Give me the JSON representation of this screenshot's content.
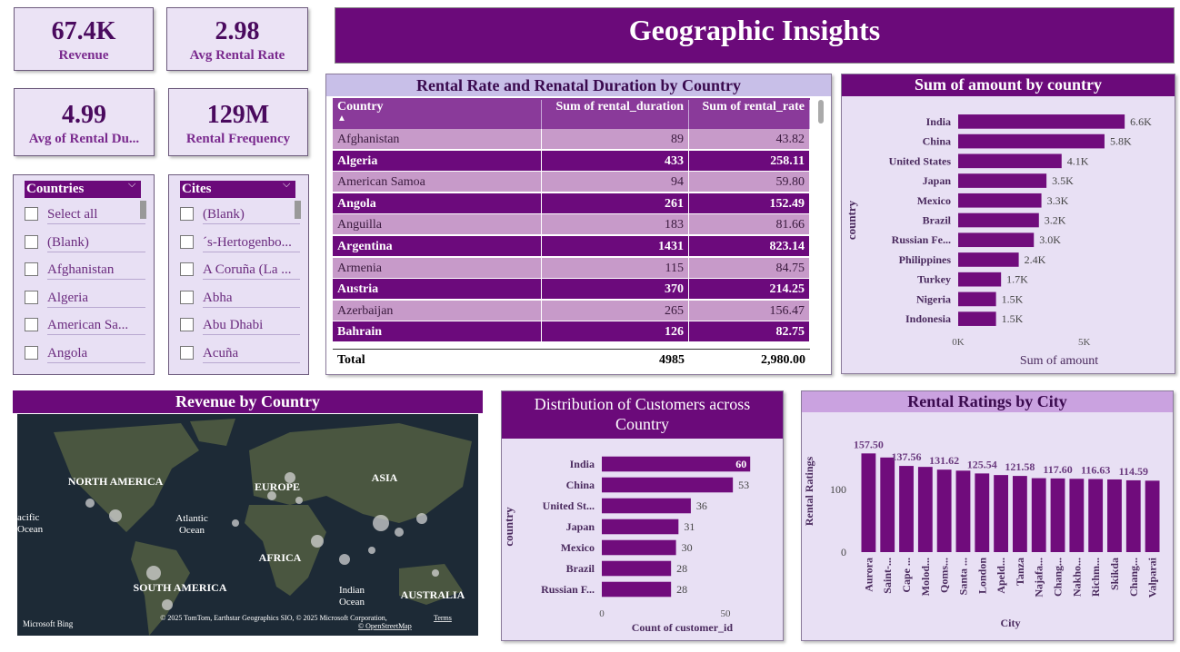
{
  "title": "Geographic Insights",
  "kpis": [
    {
      "value": "67.4K",
      "label": "Revenue"
    },
    {
      "value": "2.98",
      "label": "Avg Rental Rate"
    },
    {
      "value": "4.99",
      "label": "Avg of Rental Du..."
    },
    {
      "value": "129M",
      "label": "Rental Frequency"
    }
  ],
  "slicers": [
    {
      "title": "Countries",
      "items": [
        "Select all",
        "(Blank)",
        "Afghanistan",
        "Algeria",
        "American Sa...",
        "Angola"
      ]
    },
    {
      "title": "Cites",
      "items": [
        "(Blank)",
        "´s-Hertogenbo...",
        "A Coruña (La ...",
        "Abha",
        "Abu Dhabi",
        "Acuña"
      ]
    }
  ],
  "table": {
    "title": "Rental Rate and Renatal Duration by Country",
    "columns": [
      "Country",
      "Sum of rental_duration",
      "Sum of rental_rate"
    ],
    "rows": [
      [
        "Afghanistan",
        "89",
        "43.82"
      ],
      [
        "Algeria",
        "433",
        "258.11"
      ],
      [
        "American Samoa",
        "94",
        "59.80"
      ],
      [
        "Angola",
        "261",
        "152.49"
      ],
      [
        "Anguilla",
        "183",
        "81.66"
      ],
      [
        "Argentina",
        "1431",
        "823.14"
      ],
      [
        "Armenia",
        "115",
        "84.75"
      ],
      [
        "Austria",
        "370",
        "214.25"
      ],
      [
        "Azerbaijan",
        "265",
        "156.47"
      ],
      [
        "Bahrain",
        "126",
        "82.75"
      ]
    ],
    "total": [
      "Total",
      "4985",
      "2,980.00"
    ]
  },
  "map": {
    "title": "Revenue by Country",
    "labels": [
      [
        "NORTH AMERICA"
      ],
      [
        "EUROPE"
      ],
      [
        "ASIA"
      ],
      [
        "Atlantic",
        "Ocean"
      ],
      [
        "AFRICA"
      ],
      [
        "SOUTH AMERICA"
      ],
      [
        "Indian",
        "Ocean"
      ],
      [
        "AUSTRALIA"
      ],
      [
        "acific",
        "Ocean"
      ]
    ],
    "attribution": "Microsoft Bing",
    "copyright": "© 2025 TomTom, Earthstar Geographics SIO, © 2025 Microsoft Corporation,",
    "links": [
      "Terms",
      "© OpenStreetMap"
    ]
  },
  "chart_data": [
    {
      "type": "hbar",
      "title": "Sum of amount by country",
      "x_label": "Sum of amount",
      "y_label": "country",
      "categories": [
        "India",
        "China",
        "United States",
        "Japan",
        "Mexico",
        "Brazil",
        "Russian Fe...",
        "Philippines",
        "Turkey",
        "Nigeria",
        "Indonesia"
      ],
      "values": [
        6600,
        5800,
        4100,
        3500,
        3300,
        3200,
        3000,
        2400,
        1700,
        1500,
        1500
      ],
      "value_labels": [
        "6.6K",
        "5.8K",
        "4.1K",
        "3.5K",
        "3.3K",
        "3.2K",
        "3.0K",
        "2.4K",
        "1.7K",
        "1.5K",
        "1.5K"
      ],
      "color": "#700c7c",
      "xlim": [
        0,
        8000
      ],
      "xticks": [
        {
          "value": 0,
          "label": "0K"
        },
        {
          "value": 5000,
          "label": "5K"
        }
      ],
      "grid": false
    },
    {
      "type": "hbar",
      "title": "Distribution of Customers across Country",
      "x_label": "Count of customer_id",
      "y_label": "country",
      "categories": [
        "India",
        "China",
        "United St...",
        "Japan",
        "Mexico",
        "Brazil",
        "Russian F..."
      ],
      "values": [
        60,
        53,
        36,
        31,
        30,
        28,
        28
      ],
      "color": "#700c7c",
      "xlim": [
        0,
        65
      ],
      "xticks": [
        0,
        50
      ],
      "grid": false
    },
    {
      "type": "vbar",
      "title": "Rental Ratings by City",
      "x_label": "City",
      "y_label": "Rental Ratings",
      "categories": [
        "Aurora",
        "Saint-...",
        "Cape ...",
        "Molod...",
        "Qoms...",
        "Santa ...",
        "London",
        "Apeld...",
        "Tanza",
        "Najafa...",
        "Chang...",
        "Nakho...",
        "Richm...",
        "Skikda",
        "Chang...",
        "Valparai"
      ],
      "values": [
        157.5,
        151,
        137.56,
        136,
        131.62,
        130,
        125.54,
        123,
        121.58,
        118,
        117.6,
        117,
        116.63,
        116,
        114.59,
        114
      ],
      "value_labels": [
        "157.50",
        null,
        "137.56",
        null,
        "131.62",
        null,
        "125.54",
        null,
        "121.58",
        null,
        "117.60",
        null,
        "116.63",
        null,
        "114.59",
        null
      ],
      "color": "#700c7c",
      "ylim": [
        0,
        170
      ],
      "yticks": [
        0,
        100
      ],
      "grid": false
    }
  ]
}
